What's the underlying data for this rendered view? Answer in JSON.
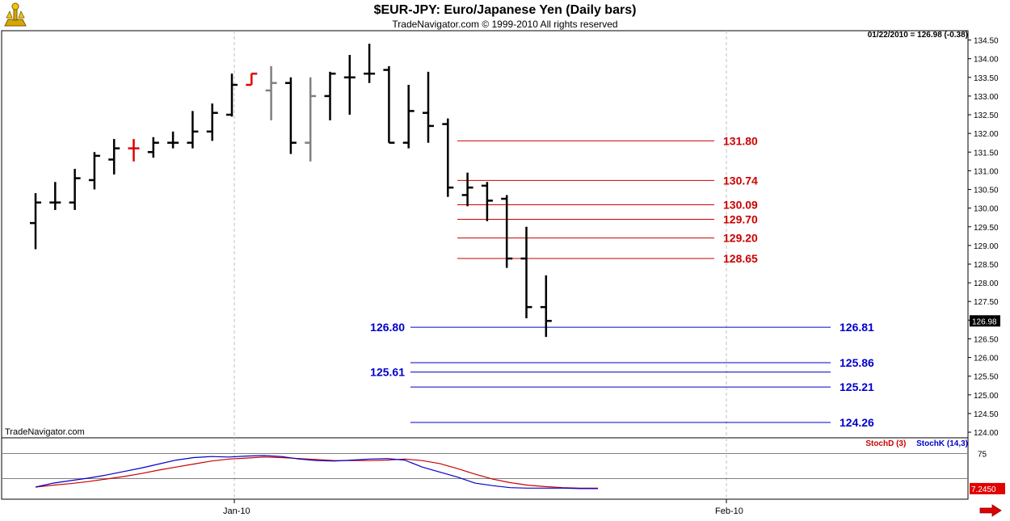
{
  "header": {
    "title": "$EUR-JPY:  Euro/Japanese Yen  (Daily bars)",
    "subtitle": "TradeNavigator.com © 1999-2010 All rights reserved",
    "readout": "01/22/2010 = 126.98 (-0.38)",
    "watermark": "TradeNavigator.com"
  },
  "indicators": {
    "stochD_label": "StochD (3)",
    "stochK_label": "StochK (14,3)",
    "level_75": "75",
    "last_value": "7.2450"
  },
  "colors": {
    "bar": "#000000",
    "bar_gray": "#808080",
    "bar_red": "#e00000",
    "resistance": "#cc0000",
    "support": "#0000cc",
    "stochD": "#cc0000",
    "stochK": "#0000cc",
    "grid": "#c0c0c0"
  },
  "chart_data": {
    "type": "ohlc",
    "title": "$EUR-JPY:  Euro/Japanese Yen  (Daily bars)",
    "ylim": [
      123.85,
      134.75
    ],
    "y_ticks": [
      "124.00",
      "124.50",
      "125.00",
      "125.50",
      "126.00",
      "126.50",
      "127.00",
      "127.50",
      "128.00",
      "128.50",
      "129.00",
      "129.50",
      "130.00",
      "130.50",
      "131.00",
      "131.50",
      "132.00",
      "132.50",
      "133.00",
      "133.50",
      "134.00",
      "134.50"
    ],
    "x_labels": [
      "Jan-10",
      "Feb-10"
    ],
    "last_price_label": "126.98",
    "bars": [
      {
        "o": 129.6,
        "h": 130.4,
        "l": 128.9,
        "c": 130.15,
        "color": "black"
      },
      {
        "o": 130.15,
        "h": 130.7,
        "l": 129.95,
        "c": 130.15,
        "color": "black"
      },
      {
        "o": 130.15,
        "h": 131.05,
        "l": 129.95,
        "c": 130.8,
        "color": "black"
      },
      {
        "o": 130.75,
        "h": 131.5,
        "l": 130.5,
        "c": 131.4,
        "color": "black"
      },
      {
        "o": 131.3,
        "h": 131.85,
        "l": 130.9,
        "c": 131.6,
        "color": "black"
      },
      {
        "o": 131.6,
        "h": 131.85,
        "l": 131.25,
        "c": 131.6,
        "color": "red"
      },
      {
        "o": 131.5,
        "h": 131.9,
        "l": 131.35,
        "c": 131.75,
        "color": "black"
      },
      {
        "o": 131.75,
        "h": 132.05,
        "l": 131.6,
        "c": 131.75,
        "color": "black"
      },
      {
        "o": 131.75,
        "h": 132.6,
        "l": 131.6,
        "c": 132.05,
        "color": "black"
      },
      {
        "o": 132.05,
        "h": 132.8,
        "l": 131.8,
        "c": 132.55,
        "color": "black"
      },
      {
        "o": 132.5,
        "h": 133.6,
        "l": 132.45,
        "c": 133.3,
        "color": "black"
      },
      {
        "o": 133.3,
        "h": 133.6,
        "l": 133.3,
        "c": 133.6,
        "color": "red"
      },
      {
        "o": 133.15,
        "h": 133.8,
        "l": 132.35,
        "c": 133.35,
        "color": "gray"
      },
      {
        "o": 133.35,
        "h": 133.5,
        "l": 131.45,
        "c": 131.75,
        "color": "black"
      },
      {
        "o": 131.75,
        "h": 133.5,
        "l": 131.25,
        "c": 133.0,
        "color": "gray"
      },
      {
        "o": 133.0,
        "h": 133.65,
        "l": 132.35,
        "c": 133.6,
        "color": "black"
      },
      {
        "o": 133.5,
        "h": 134.1,
        "l": 132.5,
        "c": 133.5,
        "color": "black"
      },
      {
        "o": 133.6,
        "h": 134.4,
        "l": 133.35,
        "c": 133.6,
        "color": "black"
      },
      {
        "o": 133.7,
        "h": 133.8,
        "l": 131.75,
        "c": 131.75,
        "color": "black"
      },
      {
        "o": 131.75,
        "h": 133.3,
        "l": 131.6,
        "c": 132.6,
        "color": "black"
      },
      {
        "o": 132.55,
        "h": 133.65,
        "l": 131.75,
        "c": 132.2,
        "color": "black"
      },
      {
        "o": 132.25,
        "h": 132.4,
        "l": 130.3,
        "c": 130.55,
        "color": "black"
      },
      {
        "o": 130.35,
        "h": 130.95,
        "l": 130.05,
        "c": 130.55,
        "color": "black"
      },
      {
        "o": 130.6,
        "h": 130.7,
        "l": 129.65,
        "c": 130.2,
        "color": "black"
      },
      {
        "o": 130.25,
        "h": 130.35,
        "l": 128.4,
        "c": 128.65,
        "color": "black"
      },
      {
        "o": 128.65,
        "h": 129.5,
        "l": 127.05,
        "c": 127.35,
        "color": "black"
      },
      {
        "o": 127.35,
        "h": 128.2,
        "l": 126.55,
        "c": 126.98,
        "color": "black"
      }
    ],
    "resistance_levels": [
      131.8,
      130.74,
      130.09,
      129.7,
      129.2,
      128.65
    ],
    "resistance_labels": [
      "131.80",
      "130.74",
      "130.09",
      "129.70",
      "129.20",
      "128.65"
    ],
    "support_levels": [
      126.81,
      125.86,
      125.61,
      125.21,
      124.26
    ],
    "support_labels_right": [
      "126.81",
      "125.86",
      "",
      "125.21",
      "124.26"
    ],
    "support_labels_left": [
      "126.80",
      "",
      "125.61",
      "",
      ""
    ],
    "stoch_ylim": [
      0,
      100
    ],
    "stochD": [
      8,
      12,
      15,
      19,
      24,
      29,
      35,
      42,
      48,
      54,
      60,
      64,
      66,
      68,
      67,
      65,
      63,
      61,
      61,
      61,
      62,
      64,
      61,
      55,
      45,
      34,
      24,
      17,
      12,
      9,
      7,
      6,
      6
    ],
    "stochK": [
      8,
      16,
      21,
      26,
      32,
      39,
      46,
      54,
      62,
      67,
      69,
      68,
      70,
      71,
      69,
      64,
      61,
      60,
      62,
      64,
      65,
      62,
      48,
      38,
      28,
      16,
      11,
      7,
      6,
      6,
      6,
      5,
      5
    ]
  }
}
